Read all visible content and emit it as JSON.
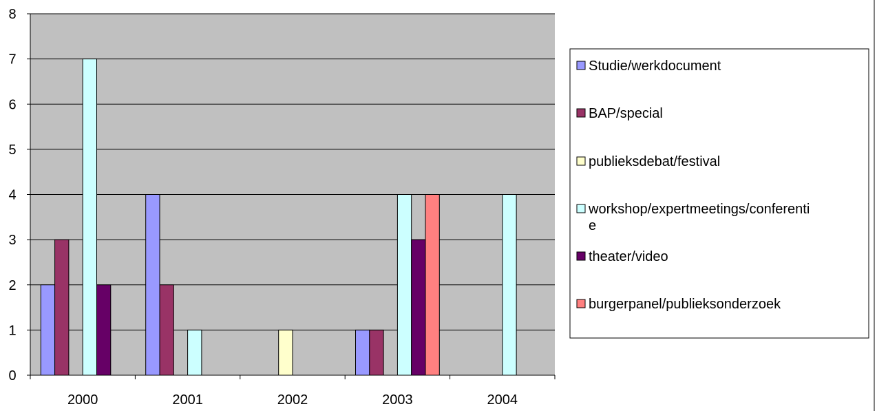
{
  "chart_data": {
    "type": "bar",
    "categories": [
      "2000",
      "2001",
      "2002",
      "2003",
      "2004"
    ],
    "series": [
      {
        "name": "Studie/werkdocument",
        "color": "#9999ff",
        "values": [
          2,
          4,
          0,
          1,
          0
        ]
      },
      {
        "name": "BAP/special",
        "color": "#993366",
        "values": [
          3,
          2,
          0,
          1,
          0
        ]
      },
      {
        "name": "publieksdebat/festival",
        "color": "#ffffcc",
        "values": [
          0,
          0,
          1,
          0,
          0
        ]
      },
      {
        "name": "workshop/expertmeetings/conferentie",
        "color": "#ccffff",
        "values": [
          7,
          1,
          0,
          4,
          4
        ]
      },
      {
        "name": "theater/video",
        "color": "#660066",
        "values": [
          2,
          0,
          0,
          3,
          0
        ]
      },
      {
        "name": "burgerpanel/publieksonderzoek",
        "color": "#ff8080",
        "values": [
          0,
          0,
          0,
          4,
          0
        ]
      }
    ],
    "legend_lines": [
      [
        "Studie/werkdocument"
      ],
      [
        "BAP/special"
      ],
      [
        "publieksdebat/festival"
      ],
      [
        "workshop/expertmeetings/conferenti",
        "e"
      ],
      [
        "theater/video"
      ],
      [
        "burgerpanel/publieksonderzoek"
      ]
    ],
    "yticks": [
      "0",
      "1",
      "2",
      "3",
      "4",
      "5",
      "6",
      "7",
      "8"
    ],
    "ylim": [
      0,
      8
    ],
    "grid": true,
    "legend_position": "right",
    "plot_background": "#c0c0c0",
    "title": "",
    "xlabel": "",
    "ylabel": ""
  }
}
